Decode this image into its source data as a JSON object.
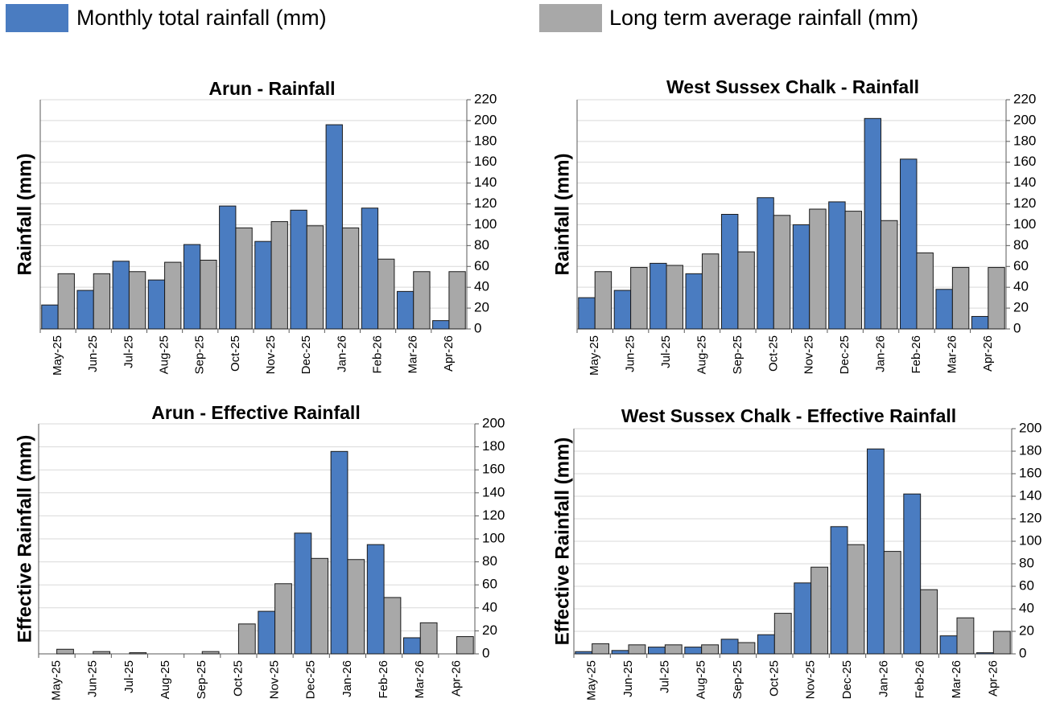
{
  "legend": [
    {
      "name": "Monthly total rainfall (mm)",
      "color": "#4a7cc1"
    },
    {
      "name": "Long term average rainfall (mm)",
      "color": "#a8a8a8"
    }
  ],
  "chart_data": [
    {
      "type": "bar",
      "title": "Arun - Rainfall",
      "y_label": "Rainfall (mm)",
      "categories": [
        "May-25",
        "Jun-25",
        "Jul-25",
        "Aug-25",
        "Sep-25",
        "Oct-25",
        "Nov-25",
        "Dec-25",
        "Jan-26",
        "Feb-26",
        "Mar-26",
        "Apr-26"
      ],
      "series": [
        {
          "color": "#4a7cc1",
          "values": [
            23,
            37,
            65,
            47,
            81,
            118,
            84,
            114,
            196,
            116,
            36,
            8
          ]
        },
        {
          "color": "#a8a8a8",
          "values": [
            53,
            53,
            55,
            64,
            66,
            97,
            103,
            99,
            97,
            67,
            55,
            55
          ]
        }
      ],
      "ylim": [
        0,
        220
      ],
      "yticks": [
        0,
        20,
        40,
        60,
        80,
        100,
        120,
        140,
        160,
        180,
        200,
        220
      ],
      "grid": true
    },
    {
      "type": "bar",
      "title": "West Sussex Chalk - Rainfall",
      "y_label": "Rainfall (mm)",
      "categories": [
        "May-25",
        "Jun-25",
        "Jul-25",
        "Aug-25",
        "Sep-25",
        "Oct-25",
        "Nov-25",
        "Dec-25",
        "Jan-26",
        "Feb-26",
        "Mar-26",
        "Apr-26"
      ],
      "series": [
        {
          "color": "#4a7cc1",
          "values": [
            30,
            37,
            63,
            53,
            110,
            126,
            100,
            122,
            202,
            163,
            38,
            12
          ]
        },
        {
          "color": "#a8a8a8",
          "values": [
            55,
            59,
            61,
            72,
            74,
            109,
            115,
            113,
            104,
            73,
            59,
            59
          ]
        }
      ],
      "ylim": [
        0,
        220
      ],
      "yticks": [
        0,
        20,
        40,
        60,
        80,
        100,
        120,
        140,
        160,
        180,
        200,
        220
      ],
      "grid": true
    },
    {
      "type": "bar",
      "title": "Arun - Effective Rainfall",
      "y_label": "Effective Rainfall (mm)",
      "categories": [
        "May-25",
        "Jun-25",
        "Jul-25",
        "Aug-25",
        "Sep-25",
        "Oct-25",
        "Nov-25",
        "Dec-25",
        "Jan-26",
        "Feb-26",
        "Mar-26",
        "Apr-26"
      ],
      "series": [
        {
          "color": "#4a7cc1",
          "values": [
            0,
            0,
            0,
            0,
            0,
            0,
            37,
            105,
            176,
            95,
            14,
            0
          ]
        },
        {
          "color": "#a8a8a8",
          "values": [
            4,
            2,
            1,
            0,
            2,
            26,
            61,
            83,
            82,
            49,
            27,
            15
          ]
        }
      ],
      "ylim": [
        0,
        200
      ],
      "yticks": [
        0,
        20,
        40,
        60,
        80,
        100,
        120,
        140,
        160,
        180,
        200
      ],
      "grid": true
    },
    {
      "type": "bar",
      "title": "West Sussex Chalk - Effective Rainfall",
      "y_label": "Effective Rainfall (mm)",
      "categories": [
        "May-25",
        "Jun-25",
        "Jul-25",
        "Aug-25",
        "Sep-25",
        "Oct-25",
        "Nov-25",
        "Dec-25",
        "Jan-26",
        "Feb-26",
        "Mar-26",
        "Apr-26"
      ],
      "series": [
        {
          "color": "#4a7cc1",
          "values": [
            2,
            3,
            6,
            6,
            13,
            17,
            63,
            113,
            182,
            142,
            16,
            1
          ]
        },
        {
          "color": "#a8a8a8",
          "values": [
            9,
            8,
            8,
            8,
            10,
            36,
            77,
            97,
            91,
            57,
            32,
            20
          ]
        }
      ],
      "ylim": [
        0,
        200
      ],
      "yticks": [
        0,
        20,
        40,
        60,
        80,
        100,
        120,
        140,
        160,
        180,
        200
      ],
      "grid": true
    }
  ]
}
